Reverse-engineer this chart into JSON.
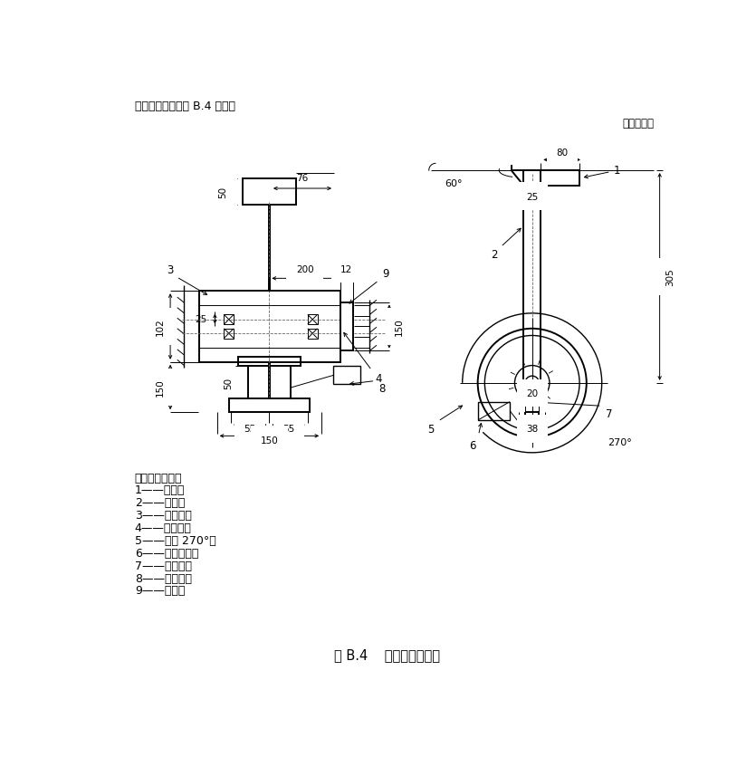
{
  "title_top": "碰撞试验设备如图 B.4 所示。",
  "unit_label": "单位为毫米",
  "fig_caption": "图 B.4    碰撞试验设备图",
  "legend_title": "标引序号说明：",
  "legend_items": [
    "1——锤头；",
    "2——摆杆；",
    "3——钢轮毂；",
    "4——球轴承；",
    "5——转动 270°；",
    "6——工作重锤；",
    "7——配重块；",
    "8——配重臂；",
    "9——滑轮。"
  ],
  "line_color": "#000000",
  "bg_color": "#ffffff"
}
